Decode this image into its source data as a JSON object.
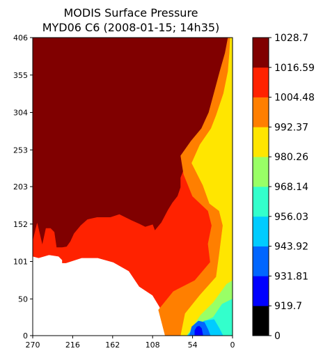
{
  "chart_data": {
    "type": "heatmap",
    "subtype": "filled-contour",
    "title_line1": "MODIS Surface Pressure",
    "title_line2": "MYD06 C6 (2008-01-15; 14h35)",
    "xlabel": "",
    "ylabel": "",
    "x_ticks": [
      "270",
      "216",
      "162",
      "108",
      "54",
      "0"
    ],
    "y_ticks": [
      "0",
      "50",
      "101",
      "152",
      "203",
      "253",
      "304",
      "355",
      "406"
    ],
    "xlim": [
      270,
      0
    ],
    "ylim": [
      0,
      406
    ],
    "colorbar": {
      "levels": [
        "0",
        "919.7",
        "931.81",
        "943.92",
        "956.03",
        "968.14",
        "980.26",
        "992.37",
        "1004.48",
        "1016.59",
        "1028.7"
      ],
      "colors": [
        "#000000",
        "#0000ff",
        "#0066ff",
        "#00ccff",
        "#33ffcc",
        "#99ff66",
        "#ffe600",
        "#ff7f00",
        "#ff2200",
        "#800000"
      ]
    },
    "regions": [
      {
        "level_band": "1016.59-1028.7",
        "color": "#800000",
        "polygon": [
          [
            270,
            128
          ],
          [
            264,
            153
          ],
          [
            257,
            123
          ],
          [
            252,
            146
          ],
          [
            246,
            146
          ],
          [
            241,
            141
          ],
          [
            238,
            120
          ],
          [
            230,
            120
          ],
          [
            224,
            121
          ],
          [
            219,
            128
          ],
          [
            214,
            139
          ],
          [
            205,
            150
          ],
          [
            196,
            158
          ],
          [
            183,
            161
          ],
          [
            165,
            161
          ],
          [
            153,
            165
          ],
          [
            137,
            157
          ],
          [
            126,
            152
          ],
          [
            118,
            148
          ],
          [
            108,
            151
          ],
          [
            105,
            143
          ],
          [
            96,
            154
          ],
          [
            87,
            171
          ],
          [
            81,
            181
          ],
          [
            74,
            190
          ],
          [
            70,
            202
          ],
          [
            70,
            215
          ],
          [
            62,
            236
          ],
          [
            50,
            256
          ],
          [
            38,
            272
          ],
          [
            30,
            292
          ],
          [
            23,
            316
          ],
          [
            17,
            346
          ],
          [
            10,
            376
          ],
          [
            4,
            406
          ],
          [
            270,
            406
          ]
        ]
      },
      {
        "level_band": "1004.48-1016.59",
        "color": "#ff2200",
        "polygon": [
          [
            84,
            0
          ],
          [
            89,
            20
          ],
          [
            99,
            40
          ],
          [
            108,
            55
          ],
          [
            126,
            67
          ],
          [
            140,
            88
          ],
          [
            161,
            100
          ],
          [
            182,
            106
          ],
          [
            204,
            106
          ],
          [
            225,
            99
          ],
          [
            230,
            99
          ],
          [
            230,
            103
          ],
          [
            235,
            108
          ],
          [
            248,
            110
          ],
          [
            262,
            106
          ],
          [
            270,
            108
          ],
          [
            270,
            128
          ],
          [
            264,
            153
          ],
          [
            257,
            123
          ],
          [
            252,
            146
          ],
          [
            246,
            146
          ],
          [
            241,
            141
          ],
          [
            238,
            120
          ],
          [
            230,
            120
          ],
          [
            224,
            121
          ],
          [
            219,
            128
          ],
          [
            214,
            139
          ],
          [
            205,
            150
          ],
          [
            196,
            158
          ],
          [
            183,
            161
          ],
          [
            165,
            161
          ],
          [
            153,
            165
          ],
          [
            137,
            157
          ],
          [
            126,
            152
          ],
          [
            118,
            148
          ],
          [
            108,
            151
          ],
          [
            105,
            143
          ],
          [
            96,
            154
          ],
          [
            87,
            171
          ],
          [
            81,
            181
          ],
          [
            74,
            190
          ],
          [
            70,
            202
          ],
          [
            70,
            215
          ],
          [
            62,
            236
          ],
          [
            50,
            256
          ],
          [
            38,
            272
          ],
          [
            30,
            292
          ],
          [
            23,
            316
          ],
          [
            17,
            346
          ],
          [
            10,
            376
          ],
          [
            4,
            406
          ],
          [
            0,
            406
          ],
          [
            0,
            0
          ]
        ]
      },
      {
        "level_band": "992.37-1004.48",
        "color": "#ff7f00",
        "polygon": [
          [
            91,
            0
          ],
          [
            100,
            35
          ],
          [
            80,
            60
          ],
          [
            51,
            75
          ],
          [
            30,
            100
          ],
          [
            33,
            125
          ],
          [
            28,
            150
          ],
          [
            33,
            170
          ],
          [
            54,
            190
          ],
          [
            66,
            220
          ],
          [
            70,
            245
          ],
          [
            56,
            265
          ],
          [
            42,
            282
          ],
          [
            32,
            304
          ],
          [
            25,
            330
          ],
          [
            17,
            360
          ],
          [
            10,
            385
          ],
          [
            6,
            406
          ],
          [
            0,
            406
          ],
          [
            0,
            0
          ]
        ]
      },
      {
        "level_band": "980.26-992.37",
        "color": "#ffe600",
        "polygon": [
          [
            70,
            0
          ],
          [
            64,
            30
          ],
          [
            44,
            55
          ],
          [
            22,
            80
          ],
          [
            18,
            110
          ],
          [
            13,
            150
          ],
          [
            18,
            170
          ],
          [
            31,
            180
          ],
          [
            40,
            205
          ],
          [
            55,
            235
          ],
          [
            44,
            260
          ],
          [
            29,
            282
          ],
          [
            22,
            300
          ],
          [
            12,
            330
          ],
          [
            6,
            360
          ],
          [
            4,
            385
          ],
          [
            3,
            406
          ],
          [
            0,
            406
          ],
          [
            0,
            0
          ]
        ]
      },
      {
        "level_band": "968.14-980.26",
        "color": "#99ff66",
        "polygon": [
          [
            62,
            0
          ],
          [
            43,
            28
          ],
          [
            26,
            45
          ],
          [
            8,
            70
          ],
          [
            0,
            75
          ],
          [
            0,
            0
          ]
        ]
      },
      {
        "level_band": "956.03-968.14",
        "color": "#33ffcc",
        "polygon": [
          [
            59,
            0
          ],
          [
            48,
            15
          ],
          [
            26,
            25
          ],
          [
            14,
            43
          ],
          [
            0,
            50
          ],
          [
            0,
            0
          ]
        ]
      },
      {
        "level_band": "943.92-956.03",
        "color": "#00ccff",
        "polygon": [
          [
            61,
            0
          ],
          [
            52,
            10
          ],
          [
            38,
            20
          ],
          [
            25,
            22
          ],
          [
            18,
            10
          ],
          [
            13,
            0
          ]
        ]
      },
      {
        "level_band": "931.81-943.92",
        "color": "#0066ff",
        "polygon": [
          [
            58,
            0
          ],
          [
            55,
            12
          ],
          [
            46,
            20
          ],
          [
            38,
            18
          ],
          [
            33,
            8
          ],
          [
            30,
            0
          ]
        ]
      },
      {
        "level_band": "919.7-931.81",
        "color": "#0000ff",
        "polygon": [
          [
            51,
            0
          ],
          [
            51,
            7
          ],
          [
            48,
            12
          ],
          [
            45,
            13
          ],
          [
            42,
            10
          ],
          [
            40,
            0
          ]
        ]
      }
    ]
  }
}
